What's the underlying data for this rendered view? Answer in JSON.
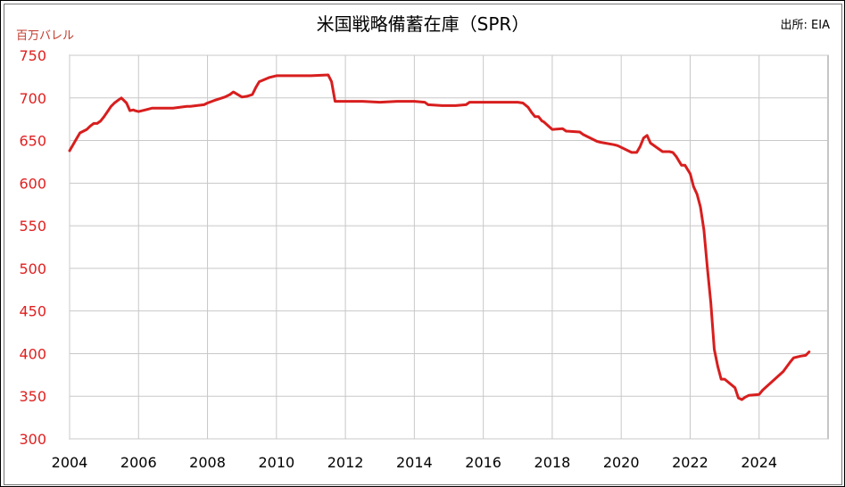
{
  "chart_data": {
    "type": "line",
    "title": "米国戦略備蓄在庫（SPR）",
    "source": "出所: EIA",
    "unit_label": "百万バレル",
    "xlim": [
      2004,
      2026
    ],
    "ylim": [
      300,
      750
    ],
    "x_ticks": [
      2004,
      2006,
      2008,
      2010,
      2012,
      2014,
      2016,
      2018,
      2020,
      2022,
      2024
    ],
    "y_ticks": [
      300,
      350,
      400,
      450,
      500,
      550,
      600,
      650,
      700,
      750
    ],
    "grid": true,
    "colors": {
      "line": "#d81e1e",
      "axis_text": "#e02020",
      "unit_text": "#c0392b",
      "grid": "#c8c8c8"
    },
    "series": [
      {
        "x": [
          2004.0,
          2004.1,
          2004.2,
          2004.3,
          2004.5,
          2004.6,
          2004.7,
          2004.8,
          2004.9,
          2005.0,
          2005.1,
          2005.2,
          2005.3,
          2005.4,
          2005.5,
          2005.65,
          2005.75,
          2005.85,
          2005.9,
          2006.0,
          2006.2,
          2006.4,
          2006.6,
          2007.0,
          2007.4,
          2007.5,
          2007.9,
          2008.0,
          2008.2,
          2008.5,
          2008.65,
          2008.75,
          2009.0,
          2009.15,
          2009.3,
          2009.4,
          2009.5,
          2009.8,
          2010.0,
          2010.5,
          2011.0,
          2011.5,
          2011.6,
          2011.7,
          2012.0,
          2012.5,
          2013.0,
          2013.5,
          2014.0,
          2014.3,
          2014.4,
          2014.8,
          2015.2,
          2015.5,
          2015.6,
          2016.0,
          2016.5,
          2017.0,
          2017.15,
          2017.3,
          2017.4,
          2017.5,
          2017.6,
          2017.7,
          2017.75,
          2018.0,
          2018.3,
          2018.4,
          2018.8,
          2018.9,
          2019.3,
          2019.4,
          2019.8,
          2019.9,
          2020.3,
          2020.35,
          2020.45,
          2020.55,
          2020.65,
          2020.75,
          2020.85,
          2021.2,
          2021.3,
          2021.4,
          2021.5,
          2021.6,
          2021.75,
          2021.85,
          2022.0,
          2022.1,
          2022.2,
          2022.3,
          2022.4,
          2022.5,
          2022.6,
          2022.7,
          2022.8,
          2022.9,
          2023.0,
          2023.3,
          2023.4,
          2023.5,
          2023.6,
          2023.7,
          2024.0,
          2024.1,
          2024.4,
          2024.7,
          2024.9,
          2025.0,
          2025.2,
          2025.35,
          2025.45
        ],
        "y": [
          638,
          645,
          652,
          659,
          663,
          667,
          670,
          670,
          673,
          678,
          684,
          690,
          694,
          697,
          700,
          694,
          685,
          686,
          685,
          684,
          686,
          688,
          688,
          688,
          690,
          690,
          692,
          694,
          697,
          701,
          704,
          707,
          701,
          702,
          704,
          712,
          719,
          724,
          726,
          726,
          726,
          727,
          719,
          696,
          696,
          696,
          695,
          696,
          696,
          695,
          692,
          691,
          691,
          692,
          695,
          695,
          695,
          695,
          694,
          689,
          683,
          678,
          678,
          673,
          672,
          663,
          664,
          661,
          660,
          657,
          649,
          648,
          645,
          644,
          636,
          636,
          636,
          643,
          653,
          656,
          647,
          637,
          637,
          637,
          636,
          631,
          621,
          621,
          611,
          596,
          587,
          572,
          545,
          500,
          460,
          405,
          385,
          370,
          370,
          360,
          348,
          346,
          349,
          351,
          352,
          357,
          368,
          379,
          390,
          395,
          397,
          398,
          402
        ]
      }
    ]
  }
}
